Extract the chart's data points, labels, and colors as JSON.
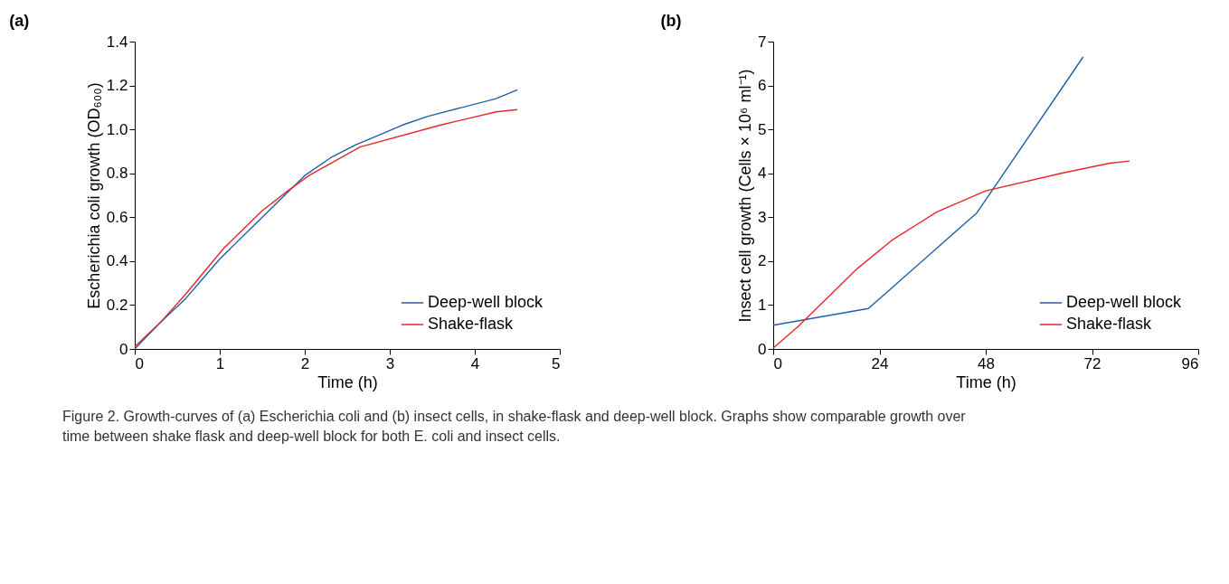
{
  "chart_data": [
    {
      "type": "line",
      "title": "(a)",
      "xlabel": "Time (h)",
      "ylabel": "Escherichia coli growth (OD₆₀₀)",
      "xlim": [
        0,
        5
      ],
      "xticks": [
        0,
        1,
        2,
        3,
        4,
        5
      ],
      "ylim": [
        0,
        1.4
      ],
      "yticks": [
        0,
        0.2,
        0.4,
        0.6,
        0.8,
        {
          "value": 1,
          "label": "1.0"
        },
        1.2,
        1.4
      ],
      "grid": false,
      "legend": "bottom right",
      "line_style": "solid",
      "marker": "none",
      "series": [
        {
          "name": "Deep-well block",
          "color": "#1f5fa8",
          "x": [
            0,
            0.3,
            0.6,
            1,
            1.5,
            2,
            2.3,
            2.6,
            2.85,
            3.15,
            3.45,
            4.25,
            4.5
          ],
          "values": [
            0,
            0.12,
            0.23,
            0.41,
            0.6,
            0.79,
            0.87,
            0.93,
            0.97,
            1.02,
            1.06,
            1.14,
            1.18
          ]
        },
        {
          "name": "Shake-flask",
          "color": "#e8262a",
          "x": [
            0,
            0.3,
            0.6,
            1.05,
            1.5,
            1.8,
            2.05,
            2.65,
            3.6,
            4.25,
            4.5
          ],
          "values": [
            0.01,
            0.12,
            0.25,
            0.46,
            0.63,
            0.72,
            0.79,
            0.92,
            1.02,
            1.08,
            1.09
          ]
        }
      ]
    },
    {
      "type": "line",
      "title": "(b)",
      "xlabel": "Time (h)",
      "ylabel": "Insect cell growth (Cells × 10⁶ ml⁻¹)",
      "xlim": [
        0,
        96
      ],
      "xticks": [
        0,
        24,
        48,
        72,
        96
      ],
      "ylim": [
        0,
        7
      ],
      "yticks": [
        0,
        1,
        2,
        3,
        4,
        5,
        6,
        7
      ],
      "grid": false,
      "legend": "bottom right",
      "line_style": "solid",
      "marker": "none",
      "annotations": [
        "Figure 2. Growth-curves of (a) Escherichia coli and (b) insect cells, in shake-flask and deep-well block. Graphs show comparable growth over time between shake flask and deep-well block for both E. coli and insect cells."
      ],
      "series": [
        {
          "name": "Deep-well block",
          "color": "#1f5fa8",
          "x": [
            0,
            21.5,
            46,
            70
          ],
          "values": [
            0.54,
            0.92,
            3.1,
            6.65
          ]
        },
        {
          "name": "Shake-flask",
          "color": "#e8262a",
          "x": [
            0,
            5.5,
            19,
            27,
            37,
            48,
            65,
            76,
            80.5
          ],
          "values": [
            0.02,
            0.5,
            1.83,
            2.49,
            3.12,
            3.6,
            4.0,
            4.23,
            4.28
          ]
        }
      ]
    }
  ]
}
